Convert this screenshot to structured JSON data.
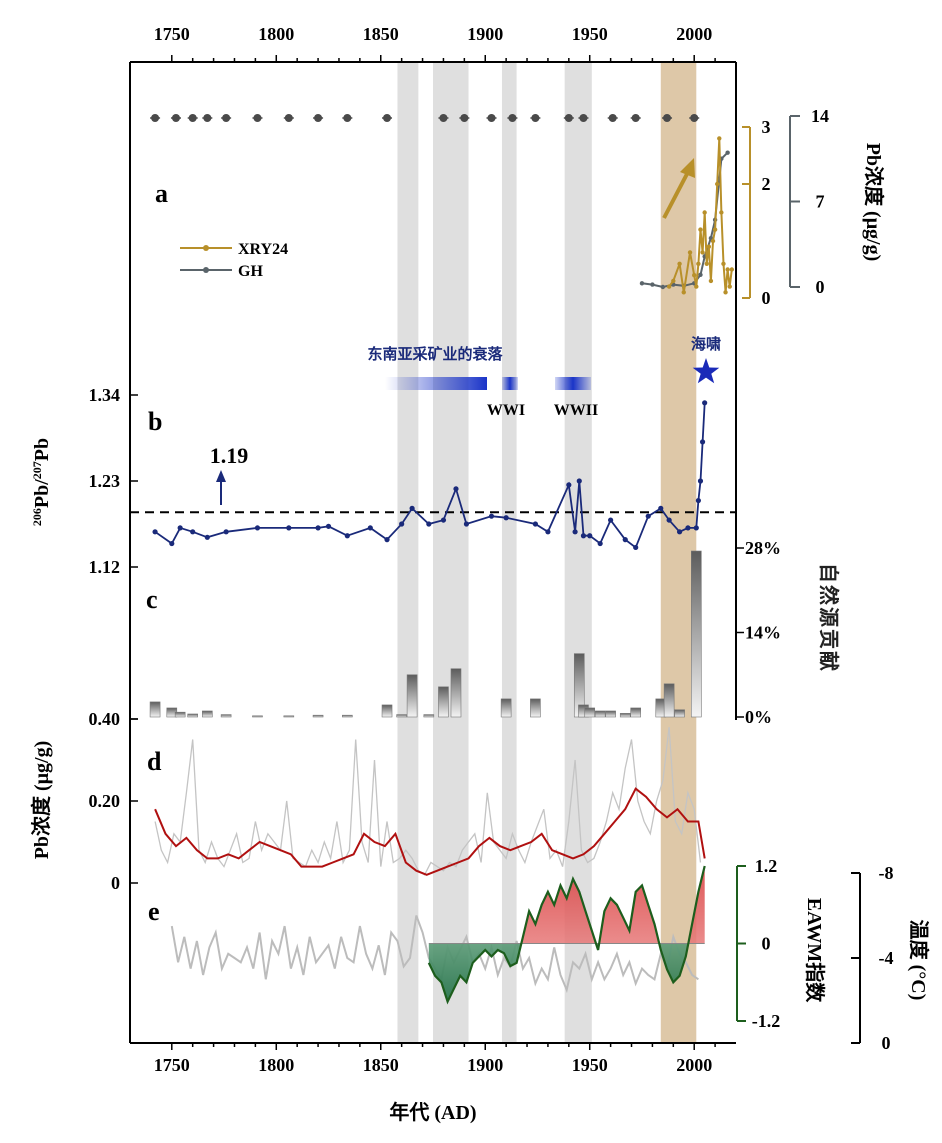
{
  "chart_data": {
    "type": "multi-panel",
    "xaxis": {
      "label": "年代 (AD)",
      "range": [
        1730,
        2020
      ],
      "bottom_ticks": [
        "1750",
        "1800",
        "1850",
        "1900",
        "1950",
        "2000"
      ],
      "top_ticks": [
        "1750",
        "1800",
        "1850",
        "1900",
        "1950",
        "2000"
      ]
    },
    "grey_bands": [
      [
        1858,
        1868
      ],
      [
        1875,
        1892
      ],
      [
        1908,
        1915
      ],
      [
        1938,
        1951
      ]
    ],
    "brown_band": [
      1984,
      2001
    ],
    "dating_points": {
      "x": [
        1742,
        1752,
        1760,
        1767,
        1776,
        1791,
        1806,
        1820,
        1834,
        1853,
        1880,
        1890,
        1903,
        1913,
        1924,
        1940,
        1947,
        1961,
        1972,
        1987,
        2000
      ],
      "color": "#4a4a4a"
    },
    "panels": [
      {
        "id": "a",
        "label": "a",
        "ylabel": "Pb浓度 (μg/g)",
        "series": [
          {
            "name": "XRY24",
            "color": "#b8902a",
            "axis_ticks": [
              "0",
              "2",
              "3"
            ],
            "ylim": [
              0,
              3
            ],
            "x": [
              1988,
              1990,
              1993,
              1995,
              1998,
              2000,
              2001,
              2002,
              2003,
              2004,
              2005,
              2006,
              2007,
              2008,
              2009,
              2010,
              2011,
              2012,
              2013,
              2014,
              2015,
              2016,
              2017,
              2018
            ],
            "values": [
              0.2,
              0.3,
              0.6,
              0.1,
              0.8,
              0.4,
              0.2,
              0.6,
              1.2,
              0.8,
              1.5,
              0.6,
              0.9,
              0.3,
              1.0,
              1.2,
              2.0,
              2.8,
              1.5,
              0.6,
              0.1,
              0.5,
              0.2,
              0.5
            ]
          },
          {
            "name": "GH",
            "color": "#5a646a",
            "axis_ticks": [
              "0",
              "7",
              "14"
            ],
            "ylim": [
              0,
              14
            ],
            "x": [
              1975,
              1980,
              1985,
              1990,
              1995,
              2000,
              2003,
              2005,
              2008,
              2010,
              2013,
              2016
            ],
            "values": [
              0.3,
              0.2,
              0.0,
              0.2,
              0.1,
              0.3,
              1.0,
              2.5,
              4.0,
              5.5,
              10.5,
              11.0
            ]
          }
        ]
      },
      {
        "id": "b",
        "label": "b",
        "ylabel_parts": {
          "pre1": "206",
          "base1": "Pb/",
          "pre2": "207",
          "base2": "Pb"
        },
        "yticks": [
          "1.12",
          "1.23",
          "1.34"
        ],
        "ylim": [
          1.12,
          1.34
        ],
        "color": "#1a2a7a",
        "threaded_reference": 1.19,
        "reference_label": "1.19",
        "x": [
          1742,
          1750,
          1754,
          1760,
          1767,
          1776,
          1791,
          1806,
          1820,
          1825,
          1834,
          1845,
          1853,
          1860,
          1865,
          1873,
          1880,
          1886,
          1891,
          1903,
          1910,
          1924,
          1930,
          1940,
          1943,
          1945,
          1947,
          1950,
          1955,
          1960,
          1967,
          1972,
          1978,
          1984,
          1988,
          1993,
          1997,
          2001,
          2002,
          2003,
          2004,
          2005
        ],
        "values": [
          1.165,
          1.15,
          1.17,
          1.165,
          1.158,
          1.165,
          1.17,
          1.17,
          1.17,
          1.172,
          1.16,
          1.17,
          1.155,
          1.175,
          1.195,
          1.175,
          1.18,
          1.22,
          1.175,
          1.185,
          1.183,
          1.175,
          1.165,
          1.225,
          1.165,
          1.23,
          1.16,
          1.16,
          1.15,
          1.18,
          1.155,
          1.145,
          1.185,
          1.195,
          1.18,
          1.165,
          1.17,
          1.17,
          1.205,
          1.23,
          1.28,
          1.33
        ],
        "annotations": {
          "decline_label": "东南亚采矿业的衰落",
          "ww1": "WWI",
          "ww2": "WWII",
          "tsunami": "海啸"
        }
      },
      {
        "id": "c",
        "label": "c",
        "ylabel": "自然源贡献",
        "yticks": [
          "0%",
          "14%",
          "28%"
        ],
        "ylim": [
          0,
          28
        ],
        "type": "bar",
        "x": [
          1742,
          1750,
          1754,
          1760,
          1767,
          1776,
          1791,
          1806,
          1820,
          1834,
          1853,
          1860,
          1865,
          1873,
          1880,
          1886,
          1910,
          1924,
          1945,
          1947,
          1950,
          1955,
          1960,
          1967,
          1972,
          1984,
          1988,
          1993,
          2001
        ],
        "values": [
          2.5,
          1.5,
          0.8,
          0.5,
          1.0,
          0.4,
          0.2,
          0.2,
          0.3,
          0.3,
          2.0,
          0.4,
          7.0,
          0.4,
          5.0,
          8.0,
          3.0,
          3.0,
          10.5,
          2.0,
          1.5,
          1.0,
          1.0,
          0.6,
          1.5,
          3.0,
          5.5,
          1.2,
          27.5
        ]
      },
      {
        "id": "d",
        "label": "d",
        "ylabel": "Pb浓度 (μg/g)",
        "yticks": [
          "0",
          "0.20",
          "0.40"
        ],
        "ylim": [
          0,
          0.4
        ],
        "smooth_color": "#b01010",
        "raw_color": "#c4c4c4",
        "smooth_x": [
          1742,
          1747,
          1752,
          1757,
          1762,
          1767,
          1772,
          1777,
          1782,
          1787,
          1792,
          1797,
          1802,
          1807,
          1812,
          1817,
          1822,
          1827,
          1832,
          1837,
          1842,
          1847,
          1852,
          1857,
          1862,
          1867,
          1872,
          1877,
          1882,
          1887,
          1892,
          1897,
          1902,
          1907,
          1912,
          1917,
          1922,
          1927,
          1932,
          1937,
          1942,
          1947,
          1952,
          1957,
          1962,
          1967,
          1972,
          1977,
          1982,
          1987,
          1992,
          1997,
          2002,
          2005
        ],
        "smooth_values": [
          0.18,
          0.12,
          0.09,
          0.11,
          0.08,
          0.06,
          0.06,
          0.07,
          0.06,
          0.08,
          0.1,
          0.09,
          0.08,
          0.07,
          0.04,
          0.04,
          0.04,
          0.05,
          0.06,
          0.07,
          0.12,
          0.1,
          0.09,
          0.12,
          0.05,
          0.03,
          0.02,
          0.03,
          0.04,
          0.05,
          0.06,
          0.09,
          0.11,
          0.09,
          0.08,
          0.09,
          0.1,
          0.12,
          0.08,
          0.07,
          0.06,
          0.07,
          0.09,
          0.12,
          0.15,
          0.18,
          0.23,
          0.21,
          0.18,
          0.16,
          0.18,
          0.15,
          0.15,
          0.06
        ],
        "raw_x": [
          1742,
          1745,
          1748,
          1751,
          1754,
          1757,
          1760,
          1763,
          1766,
          1769,
          1772,
          1775,
          1778,
          1781,
          1784,
          1787,
          1790,
          1793,
          1796,
          1799,
          1802,
          1805,
          1808,
          1811,
          1814,
          1817,
          1820,
          1823,
          1826,
          1829,
          1832,
          1835,
          1838,
          1841,
          1844,
          1847,
          1850,
          1853,
          1856,
          1859,
          1862,
          1865,
          1868,
          1871,
          1874,
          1877,
          1880,
          1883,
          1886,
          1889,
          1892,
          1895,
          1898,
          1901,
          1904,
          1907,
          1910,
          1913,
          1916,
          1919,
          1922,
          1925,
          1928,
          1931,
          1934,
          1937,
          1940,
          1943,
          1946,
          1949,
          1952,
          1955,
          1958,
          1961,
          1964,
          1967,
          1970,
          1973,
          1976,
          1979,
          1982,
          1985,
          1988,
          1991,
          1994,
          1997,
          2000,
          2003
        ],
        "raw_values": [
          0.15,
          0.08,
          0.05,
          0.12,
          0.1,
          0.22,
          0.35,
          0.08,
          0.05,
          0.1,
          0.06,
          0.04,
          0.08,
          0.12,
          0.05,
          0.06,
          0.15,
          0.08,
          0.12,
          0.1,
          0.08,
          0.2,
          0.06,
          0.05,
          0.04,
          0.08,
          0.05,
          0.1,
          0.06,
          0.15,
          0.05,
          0.08,
          0.35,
          0.1,
          0.05,
          0.3,
          0.04,
          0.15,
          0.05,
          0.06,
          0.08,
          0.06,
          0.03,
          0.02,
          0.05,
          0.04,
          0.03,
          0.05,
          0.04,
          0.08,
          0.1,
          0.12,
          0.05,
          0.22,
          0.1,
          0.08,
          0.06,
          0.12,
          0.08,
          0.05,
          0.1,
          0.14,
          0.18,
          0.06,
          0.08,
          0.04,
          0.15,
          0.3,
          0.08,
          0.05,
          0.06,
          0.1,
          0.15,
          0.22,
          0.18,
          0.28,
          0.35,
          0.2,
          0.15,
          0.12,
          0.2,
          0.25,
          0.38,
          0.15,
          0.12,
          0.22,
          0.18,
          0.05
        ]
      },
      {
        "id": "e",
        "label": "e",
        "ylabel": "EAWM指数",
        "ylabel2": "温度 (°C)",
        "eawm_ticks": [
          "-1.2",
          "0",
          "1.2"
        ],
        "eawm_ylim": [
          -1.2,
          1.2
        ],
        "temp_ticks": [
          "-8",
          "-4",
          "0"
        ],
        "temp_ylim": [
          0,
          -8
        ],
        "eawm_color": "#1d5e1d",
        "temp_color": "#bcbcbc",
        "eawm_x": [
          1873,
          1876,
          1879,
          1882,
          1885,
          1888,
          1891,
          1894,
          1897,
          1900,
          1903,
          1906,
          1909,
          1912,
          1915,
          1918,
          1921,
          1924,
          1927,
          1930,
          1933,
          1936,
          1939,
          1942,
          1945,
          1948,
          1951,
          1954,
          1957,
          1960,
          1963,
          1966,
          1969,
          1972,
          1975,
          1978,
          1981,
          1984,
          1987,
          1990,
          1993,
          1996,
          1999,
          2002,
          2005
        ],
        "eawm_values": [
          -0.3,
          -0.5,
          -0.6,
          -0.9,
          -0.7,
          -0.5,
          -0.6,
          -0.3,
          -0.2,
          -0.1,
          -0.2,
          -0.1,
          -0.15,
          -0.35,
          -0.3,
          0.1,
          0.5,
          0.3,
          0.6,
          0.8,
          0.6,
          0.9,
          0.7,
          1.0,
          0.8,
          0.5,
          0.2,
          -0.1,
          0.5,
          0.7,
          0.6,
          0.4,
          0.2,
          0.8,
          0.9,
          0.6,
          0.3,
          -0.1,
          -0.4,
          -0.6,
          -0.5,
          -0.2,
          0.3,
          0.8,
          1.2
        ],
        "temp_x": [
          1750,
          1753,
          1756,
          1759,
          1762,
          1765,
          1768,
          1771,
          1774,
          1777,
          1780,
          1783,
          1786,
          1789,
          1792,
          1795,
          1798,
          1801,
          1804,
          1807,
          1810,
          1813,
          1816,
          1819,
          1822,
          1825,
          1828,
          1831,
          1834,
          1837,
          1840,
          1843,
          1846,
          1849,
          1852,
          1855,
          1858,
          1861,
          1864,
          1867,
          1870,
          1873,
          1876,
          1879,
          1882,
          1885,
          1888,
          1891,
          1894,
          1897,
          1900,
          1903,
          1906,
          1909,
          1912,
          1915,
          1918,
          1921,
          1924,
          1927,
          1930,
          1933,
          1936,
          1939,
          1942,
          1945,
          1948,
          1951,
          1954,
          1957,
          1960,
          1963,
          1966,
          1969,
          1972,
          1975,
          1978,
          1981,
          1984,
          1987,
          1990,
          1993,
          1996,
          1999,
          2002
        ],
        "temp_values": [
          -5.5,
          -3.8,
          -5.0,
          -3.5,
          -4.8,
          -3.2,
          -4.5,
          -5.2,
          -3.5,
          -4.2,
          -4.0,
          -3.8,
          -4.5,
          -3.5,
          -5.2,
          -3.0,
          -4.8,
          -4.2,
          -5.5,
          -3.5,
          -4.5,
          -3.2,
          -5.0,
          -3.8,
          -4.2,
          -4.6,
          -3.5,
          -5.0,
          -4.0,
          -3.8,
          -5.5,
          -4.2,
          -3.5,
          -4.6,
          -3.2,
          -5.2,
          -4.8,
          -3.6,
          -4.0,
          -6.0,
          -5.2,
          -4.0,
          -3.5,
          -3.0,
          -4.5,
          -3.8,
          -4.4,
          -5.0,
          -3.8,
          -4.2,
          -3.5,
          -4.5,
          -3.2,
          -4.0,
          -3.6,
          -4.8,
          -3.5,
          -4.0,
          -2.8,
          -3.5,
          -3.0,
          -4.5,
          -3.2,
          -2.5,
          -3.8,
          -3.5,
          -4.2,
          -3.0,
          -3.8,
          -3.0,
          -3.5,
          -4.2,
          -3.2,
          -3.8,
          -2.8,
          -3.5,
          -3.2,
          -3.0,
          -4.2,
          -3.5,
          -5.0,
          -4.2,
          -3.8,
          -3.2,
          -3.0
        ]
      }
    ],
    "legend": [
      {
        "name": "XRY24",
        "color": "#b8902a"
      },
      {
        "name": "GH",
        "color": "#5a646a"
      }
    ]
  }
}
